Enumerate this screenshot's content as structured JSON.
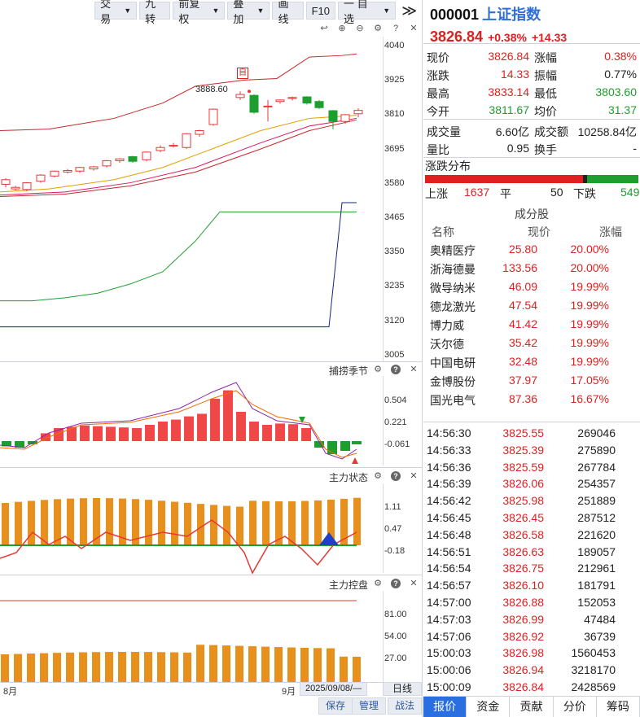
{
  "toolbar": {
    "trade": "交易",
    "nine": "九转",
    "fq": "前复权",
    "overlay": "叠加",
    "draw": "画线",
    "f10": "F10",
    "fav": "一 自选",
    "chev": "≫"
  },
  "main_axis": [
    "4040",
    "3925",
    "3810",
    "3695",
    "3580",
    "3465",
    "3350",
    "3235",
    "3120",
    "3005"
  ],
  "high_marker": "3888.60",
  "self_tag": "自",
  "sub1": {
    "title": "捕捞季节",
    "axis": [
      "0.504",
      "0.221",
      "-0.061"
    ]
  },
  "sub2": {
    "title": "主力状态",
    "axis": [
      "1.11",
      "0.47",
      "-0.18"
    ]
  },
  "sub3": {
    "title": "主力控盘",
    "axis": [
      "81.00",
      "54.00",
      "27.00"
    ]
  },
  "xaxis": {
    "aug": "8月",
    "sep": "9月",
    "date": "2025/09/08/—",
    "period": "日线"
  },
  "bottom_buttons": {
    "save": "保存",
    "manage": "管理",
    "strategy": "战法"
  },
  "stock": {
    "code": "000001",
    "name": "上证指数",
    "price": "3826.84",
    "pct": "+0.38%",
    "chg": "+14.33"
  },
  "quote": [
    {
      "l1": "现价",
      "v1": "3826.84",
      "l2": "涨幅",
      "v2": "0.38%",
      "c1": "red",
      "c2": "red"
    },
    {
      "l1": "涨跌",
      "v1": "14.33",
      "l2": "振幅",
      "v2": "0.77%",
      "c1": "red",
      "c2": "blk"
    },
    {
      "l1": "最高",
      "v1": "3833.14",
      "l2": "最低",
      "v2": "3803.60",
      "c1": "red",
      "c2": "green"
    },
    {
      "l1": "今开",
      "v1": "3811.67",
      "l2": "均价",
      "v2": "31.37",
      "c1": "green",
      "c2": "green"
    }
  ],
  "volume": [
    {
      "l1": "成交量",
      "v1": "6.60亿",
      "l2": "成交额",
      "v2": "10258.84亿"
    },
    {
      "l1": "量比",
      "v1": "0.95",
      "l2": "换手",
      "v2": "-"
    }
  ],
  "updown": {
    "title": "涨跌分布",
    "up_label": "上涨",
    "up": "1637",
    "flat_label": "平",
    "flat": "50",
    "down_label": "下跌",
    "down": "549"
  },
  "components": {
    "title": "成分股",
    "headers": [
      "名称",
      "现价",
      "涨幅"
    ],
    "rows": [
      {
        "name": "奥精医疗",
        "price": "25.80",
        "pct": "20.00%"
      },
      {
        "name": "浙海德曼",
        "price": "133.56",
        "pct": "20.00%"
      },
      {
        "name": "微导纳米",
        "price": "46.09",
        "pct": "19.99%"
      },
      {
        "name": "德龙激光",
        "price": "47.54",
        "pct": "19.99%"
      },
      {
        "name": "博力威",
        "price": "41.42",
        "pct": "19.99%"
      },
      {
        "name": "沃尔德",
        "price": "35.42",
        "pct": "19.99%"
      },
      {
        "name": "中国电研",
        "price": "32.48",
        "pct": "19.99%"
      },
      {
        "name": "金博股份",
        "price": "37.97",
        "pct": "17.05%"
      },
      {
        "name": "国光电气",
        "price": "87.36",
        "pct": "16.67%"
      }
    ]
  },
  "ticks": [
    {
      "t": "14:56:30",
      "p": "3825.55",
      "v": "269046"
    },
    {
      "t": "14:56:33",
      "p": "3825.39",
      "v": "275890"
    },
    {
      "t": "14:56:36",
      "p": "3825.59",
      "v": "267784"
    },
    {
      "t": "14:56:39",
      "p": "3826.06",
      "v": "254357"
    },
    {
      "t": "14:56:42",
      "p": "3825.98",
      "v": "251889"
    },
    {
      "t": "14:56:45",
      "p": "3826.45",
      "v": "287512"
    },
    {
      "t": "14:56:48",
      "p": "3826.58",
      "v": "221620"
    },
    {
      "t": "14:56:51",
      "p": "3826.63",
      "v": "189057"
    },
    {
      "t": "14:56:54",
      "p": "3826.75",
      "v": "212961"
    },
    {
      "t": "14:56:57",
      "p": "3826.10",
      "v": "181791"
    },
    {
      "t": "14:57:00",
      "p": "3826.88",
      "v": "152053"
    },
    {
      "t": "14:57:03",
      "p": "3826.99",
      "v": "47484"
    },
    {
      "t": "14:57:06",
      "p": "3826.92",
      "v": "36739"
    },
    {
      "t": "15:00:03",
      "p": "3826.98",
      "v": "1560453"
    },
    {
      "t": "15:00:06",
      "p": "3826.94",
      "v": "3218170"
    },
    {
      "t": "15:00:09",
      "p": "3826.84",
      "v": "2428569"
    }
  ],
  "tabs": [
    "报价",
    "资金",
    "贡献",
    "分价",
    "筹码"
  ],
  "colors": {
    "up": "#e02020",
    "down": "#1e9e2e",
    "accent": "#2a6fe0",
    "bar_orange": "#e8901c"
  }
}
